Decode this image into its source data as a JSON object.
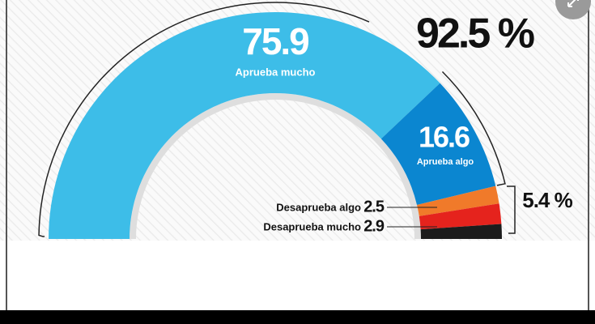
{
  "chart_data": {
    "type": "half-donut",
    "categories": [
      "Aprueba mucho",
      "Aprueba algo",
      "Desaprueba algo",
      "Desaprueba mucho",
      null
    ],
    "values": [
      75.9,
      16.6,
      2.5,
      2.9,
      2.1
    ],
    "colors": [
      "#3dbde8",
      "#0b86d0",
      "#f07a2a",
      "#e5231d",
      "#1c1c1c"
    ],
    "totals": [
      {
        "value": 92.5,
        "label": "92.5 %"
      },
      {
        "value": 5.4,
        "label": "5.4 %"
      }
    ]
  }
}
